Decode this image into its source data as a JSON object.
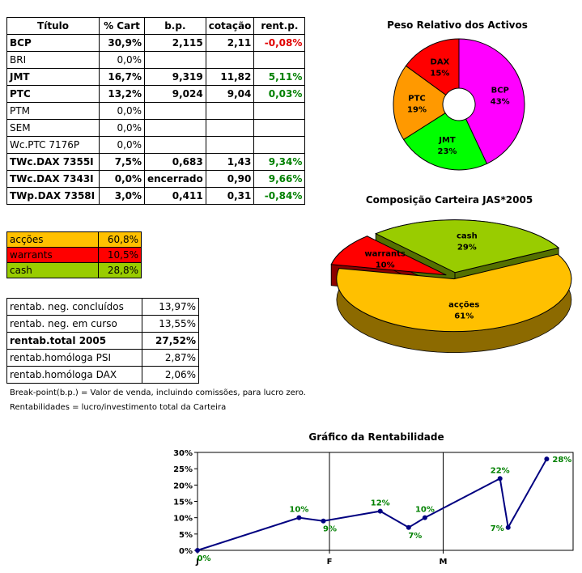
{
  "portfolio": {
    "headers": [
      "Título",
      "% Cart",
      "b.p.",
      "cotação",
      "rent.p."
    ],
    "rows": [
      {
        "name": "BCP",
        "pct": "30,9%",
        "bp": "2,115",
        "cot": "2,11",
        "rent": "-0,08%",
        "bold": true,
        "rent_color": "#e00000"
      },
      {
        "name": "BRI",
        "pct": "0,0%",
        "bp": "",
        "cot": "",
        "rent": "",
        "bold": false,
        "rent_color": "#008000"
      },
      {
        "name": "JMT",
        "pct": "16,7%",
        "bp": "9,319",
        "cot": "11,82",
        "rent": "5,11%",
        "bold": true,
        "rent_color": "#008000"
      },
      {
        "name": "PTC",
        "pct": "13,2%",
        "bp": "9,024",
        "cot": "9,04",
        "rent": "0,03%",
        "bold": true,
        "rent_color": "#008000"
      },
      {
        "name": "PTM",
        "pct": "0,0%",
        "bp": "",
        "cot": "",
        "rent": "",
        "bold": false,
        "rent_color": "#008000"
      },
      {
        "name": "SEM",
        "pct": "0,0%",
        "bp": "",
        "cot": "",
        "rent": "",
        "bold": false,
        "rent_color": "#008000"
      },
      {
        "name": "Wc.PTC 7176P",
        "pct": "0,0%",
        "bp": "",
        "cot": "",
        "rent": "",
        "bold": false,
        "rent_color": "#008000"
      },
      {
        "name": "TWc.DAX 7355I",
        "pct": "7,5%",
        "bp": "0,683",
        "cot": "1,43",
        "rent": "9,34%",
        "bold": true,
        "rent_color": "#008000"
      },
      {
        "name": "TWc.DAX 7343I",
        "pct": "0,0%",
        "bp": "encerrado",
        "cot": "0,90",
        "rent": "9,66%",
        "bold": true,
        "rent_color": "#008000"
      },
      {
        "name": "TWp.DAX 7358I",
        "pct": "3,0%",
        "bp": "0,411",
        "cot": "0,31",
        "rent": "-0,84%",
        "bold": true,
        "rent_color": "#008000"
      }
    ]
  },
  "allocation": [
    {
      "label": "acções",
      "value": "60,8%",
      "color": "#ffc000"
    },
    {
      "label": "warrants",
      "value": "10,5%",
      "color": "#ff0000"
    },
    {
      "label": "cash",
      "value": "28,8%",
      "color": "#99cc00"
    }
  ],
  "stats": [
    {
      "label": "rentab. neg. concluídos",
      "value": "13,97%",
      "bold": false
    },
    {
      "label": "rentab. neg. em curso",
      "value": "13,55%",
      "bold": false
    },
    {
      "label": "rentab.total 2005",
      "value": "27,52%",
      "bold": true
    },
    {
      "label": "rentab.homóloga PSI",
      "value": "2,87%",
      "bold": false
    },
    {
      "label": "rentab.homóloga DAX",
      "value": "2,06%",
      "bold": false
    }
  ],
  "notes": {
    "line1": "Break-point(b.p.) = Valor de venda, incluindo comissões, para lucro zero.",
    "line2": "Rentabilidades = lucro/investimento total da Carteira"
  },
  "chart_data": [
    {
      "type": "pie",
      "title": "Peso Relativo dos Activos",
      "variant": "doughnut",
      "slices": [
        {
          "label": "BCP",
          "value": 43,
          "display": "43%",
          "color": "#ff00ff"
        },
        {
          "label": "JMT",
          "value": 23,
          "display": "23%",
          "color": "#00ff00"
        },
        {
          "label": "PTC",
          "value": 19,
          "display": "19%",
          "color": "#ff9900"
        },
        {
          "label": "DAX",
          "value": 15,
          "display": "15%",
          "color": "#ff0000"
        }
      ]
    },
    {
      "type": "pie",
      "title": "Composição Carteira JAS*2005",
      "variant": "3d-exploded",
      "slices": [
        {
          "label": "acções",
          "value": 61,
          "display": "61%",
          "color": "#ffc000"
        },
        {
          "label": "warrants",
          "value": 10,
          "display": "10%",
          "color": "#ff0000"
        },
        {
          "label": "cash",
          "value": 29,
          "display": "29%",
          "color": "#99cc00"
        }
      ]
    },
    {
      "type": "line",
      "title": "Gráfico da Rentabilidade",
      "x": [
        0,
        0.5,
        0.62,
        0.9,
        1.04,
        1.12,
        1.49,
        1.53,
        1.72
      ],
      "values": [
        0,
        10,
        9,
        12,
        7,
        10,
        22,
        7,
        28
      ],
      "labels": [
        "0%",
        "10%",
        "9%",
        "12%",
        "7%",
        "10%",
        "22%",
        "7%",
        "28%"
      ],
      "label_pos": [
        "below",
        "above",
        "below",
        "above",
        "below",
        "above",
        "above",
        "left",
        "right"
      ],
      "x_ticks": [
        {
          "value": 0,
          "label": "J"
        },
        {
          "value": 0.65,
          "label": "F"
        },
        {
          "value": 1.21,
          "label": "M"
        }
      ],
      "y_ticks": [
        "0%",
        "5%",
        "10%",
        "15%",
        "20%",
        "25%",
        "30%"
      ],
      "xlim": [
        0,
        1.85
      ],
      "ylim": [
        0,
        30
      ],
      "line_color": "#000080",
      "label_color": "#008000"
    }
  ]
}
